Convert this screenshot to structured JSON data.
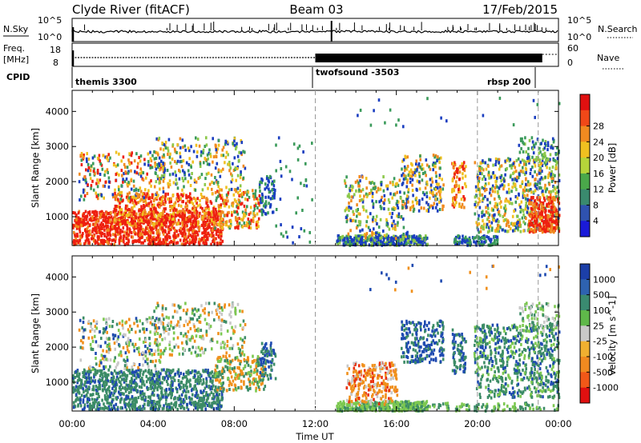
{
  "header": {
    "title_left": "Clyde River (fitACF)",
    "title_center": "Beam 03",
    "title_right": "17/Feb/2015"
  },
  "top_panels": {
    "nsky_label": "N.Sky",
    "nsky_tick_top": "10^5",
    "nsky_tick_bottom": "10^0",
    "nsearch_label": "N.Search",
    "right_tick_top": "10^5",
    "right_tick_bottom": "10^0",
    "freq_label_1": "Freq.",
    "freq_label_2": "[MHz]",
    "freq_tick_top": "18",
    "freq_tick_bottom": "8",
    "nave_label": "Nave",
    "nave_tick_top": "60",
    "nave_tick_bottom": "0",
    "cpid_label": "CPID",
    "cpid_1": "themis 3300",
    "cpid_2": "twofsound -3503",
    "cpid_3": "rbsp 200"
  },
  "chart_data": [
    {
      "type": "heatmap",
      "name": "Power",
      "ylabel": "Slant Range [km]",
      "yticks": [
        "1000",
        "2000",
        "3000",
        "4000"
      ],
      "ylim": [
        180,
        4600
      ],
      "xlim_hours": [
        0,
        24
      ],
      "colorbar_label": "Power [dB]",
      "colorbar_ticks": [
        "4",
        "8",
        "12",
        "16",
        "20",
        "24",
        "28"
      ],
      "colorbar_colors": [
        "#1a1ad8",
        "#2f52b0",
        "#3a8a6e",
        "#4aa84a",
        "#b6d43a",
        "#f0c020",
        "#f08a20",
        "#f04818",
        "#e01010"
      ],
      "colors": {
        "blue": "#1a3ec0",
        "green": "#3a9a5a",
        "lime": "#8cc84a",
        "yellow": "#f0c020",
        "orange": "#f08a20",
        "red": "#ee2010"
      }
    },
    {
      "type": "heatmap",
      "name": "Velocity",
      "ylabel": "Slant Range [km]",
      "yticks": [
        "1000",
        "2000",
        "3000",
        "4000"
      ],
      "ylim": [
        180,
        4600
      ],
      "xlim_hours": [
        0,
        24
      ],
      "colorbar_label": "Velocity [m s^-1]",
      "colorbar_ticks": [
        "1000",
        "500",
        "100",
        "25",
        "-25",
        "-100",
        "-500",
        "-1000"
      ],
      "colorbar_colors": [
        "#1c3fa8",
        "#2e62b0",
        "#3a8a70",
        "#5fb84a",
        "#c8c8c8",
        "#f0b030",
        "#f08a20",
        "#f05818",
        "#e01010"
      ],
      "colors": {
        "blue": "#1e4ab0",
        "green": "#3c8c66",
        "lime": "#7cc850",
        "gray": "#c8c8c8",
        "orange": "#f0901c",
        "red": "#e83010"
      },
      "xlabel": "Time UT",
      "xticks": [
        "00:00",
        "04:00",
        "08:00",
        "12:00",
        "16:00",
        "20:00",
        "00:00"
      ]
    }
  ]
}
